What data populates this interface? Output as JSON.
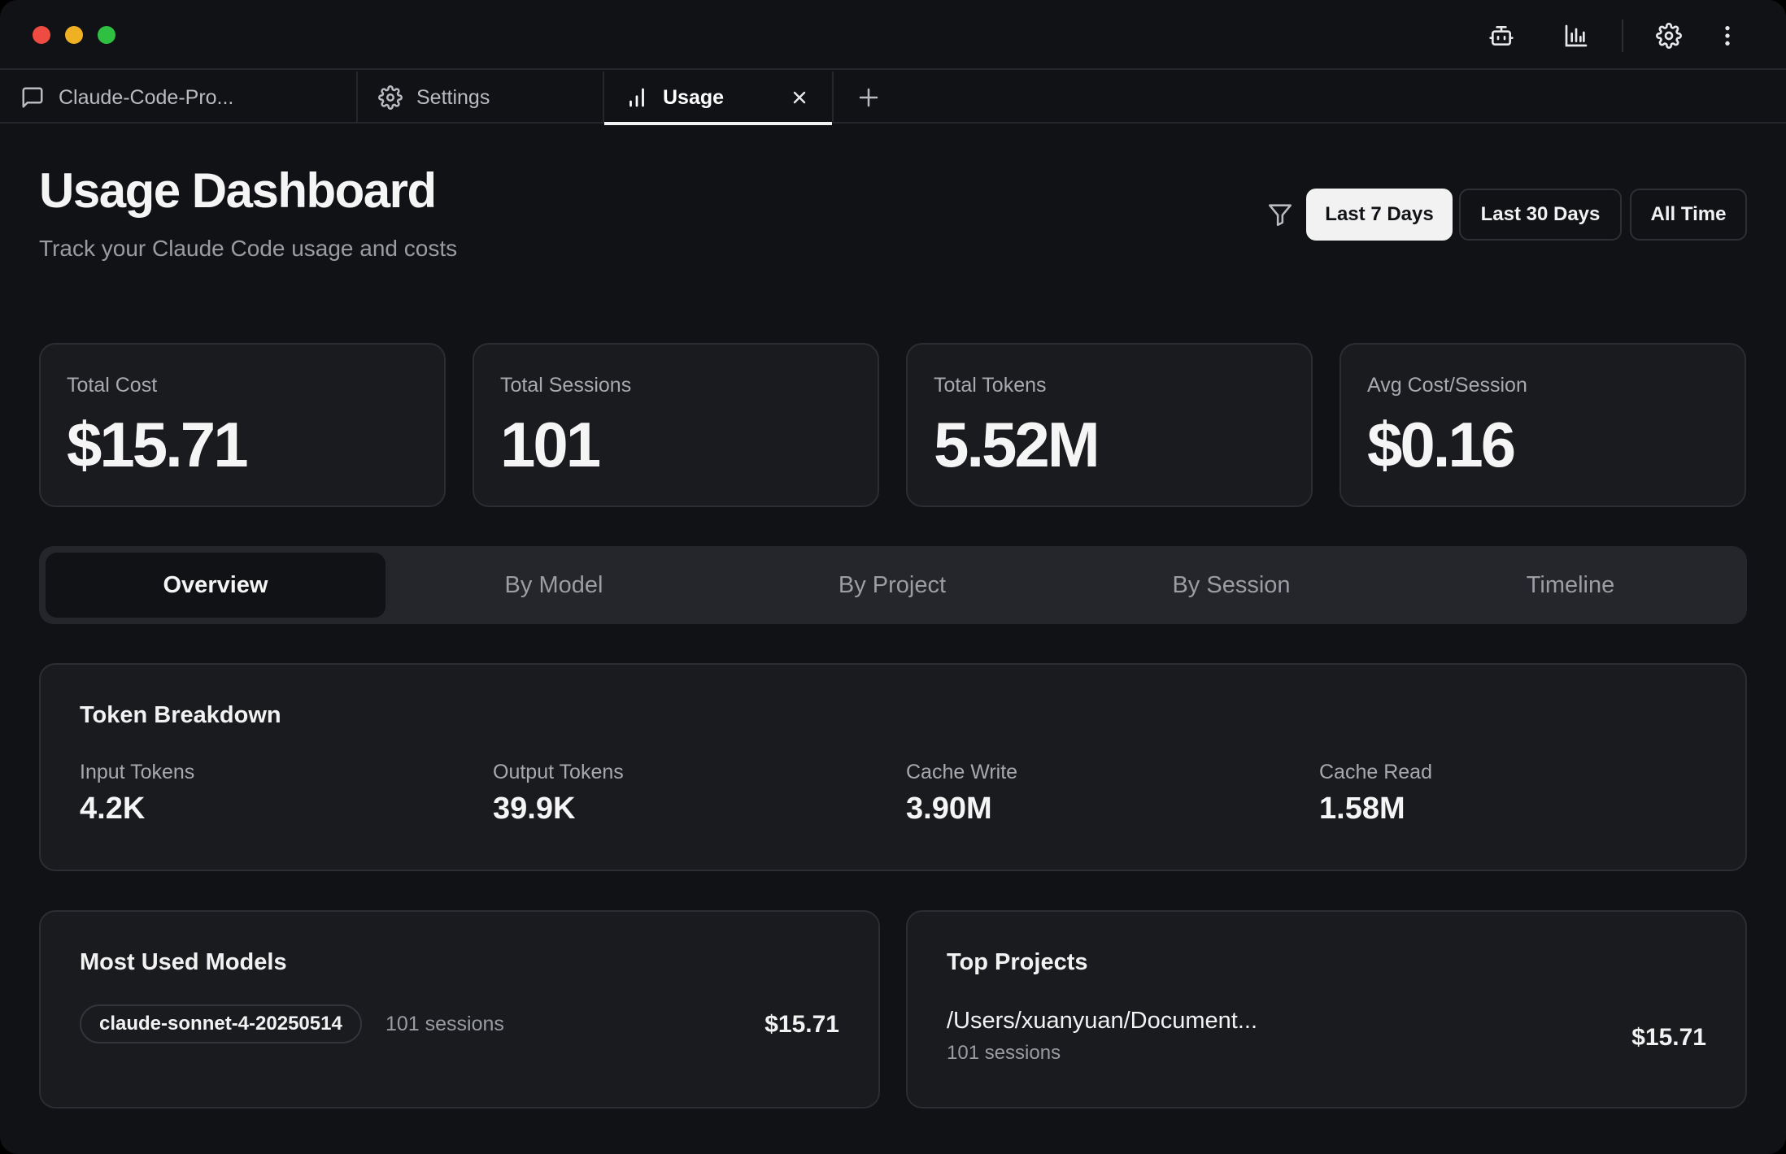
{
  "tabs": [
    {
      "label": "Claude-Code-Pro...",
      "icon": "chat-bubble-icon"
    },
    {
      "label": "Settings",
      "icon": "gear-icon"
    },
    {
      "label": "Usage",
      "icon": "bar-chart-icon",
      "active": true
    }
  ],
  "header": {
    "title": "Usage Dashboard",
    "subtitle": "Track your Claude Code usage and costs"
  },
  "filters": {
    "ranges": [
      "Last 7 Days",
      "Last 30 Days",
      "All Time"
    ],
    "selected": "Last 7 Days"
  },
  "stats": [
    {
      "label": "Total Cost",
      "value": "$15.71"
    },
    {
      "label": "Total Sessions",
      "value": "101"
    },
    {
      "label": "Total Tokens",
      "value": "5.52M"
    },
    {
      "label": "Avg Cost/Session",
      "value": "$0.16"
    }
  ],
  "views": [
    "Overview",
    "By Model",
    "By Project",
    "By Session",
    "Timeline"
  ],
  "active_view": "Overview",
  "token_breakdown": {
    "title": "Token Breakdown",
    "items": [
      {
        "label": "Input Tokens",
        "value": "4.2K"
      },
      {
        "label": "Output Tokens",
        "value": "39.9K"
      },
      {
        "label": "Cache Write",
        "value": "3.90M"
      },
      {
        "label": "Cache Read",
        "value": "1.58M"
      }
    ]
  },
  "models": {
    "title": "Most Used Models",
    "items": [
      {
        "name": "claude-sonnet-4-20250514",
        "sessions": "101 sessions",
        "cost": "$15.71"
      }
    ]
  },
  "projects": {
    "title": "Top Projects",
    "items": [
      {
        "path": "/Users/xuanyuan/Document...",
        "sessions": "101 sessions",
        "cost": "$15.71"
      }
    ]
  },
  "colors": {
    "background": "#111215",
    "card": "#1a1b1f",
    "border": "#2b2d32",
    "text": "#f2f2f3",
    "muted": "#a7a9ae",
    "close": "#ee4b43",
    "minimize": "#efb024",
    "maximize": "#2fc041"
  }
}
